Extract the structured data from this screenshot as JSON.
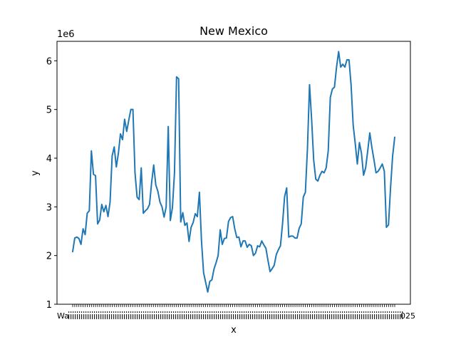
{
  "chart_data": {
    "type": "line",
    "title": "New Mexico",
    "xlabel": "x",
    "ylabel": "y",
    "y_scale_label": "1e6",
    "y_ticks": [
      1,
      2,
      3,
      4,
      5,
      6
    ],
    "ylim": [
      1.0,
      6.4
    ],
    "grid": false,
    "color": "#1f77b4",
    "x_tick_left_label": "Wa",
    "x_tick_right_label": "025",
    "series": [
      {
        "values": [
          2.08,
          2.36,
          2.38,
          2.35,
          2.23,
          2.55,
          2.43,
          2.87,
          2.92,
          4.15,
          3.67,
          3.64,
          2.65,
          2.73,
          3.05,
          2.9,
          3.03,
          2.8,
          3.1,
          4.05,
          4.23,
          3.82,
          4.1,
          4.5,
          4.38,
          4.8,
          4.55,
          4.78,
          5.0,
          5.0,
          3.7,
          3.2,
          3.15,
          3.8,
          2.87,
          2.92,
          2.96,
          3.05,
          3.5,
          3.86,
          3.45,
          3.32,
          3.1,
          3.0,
          2.79,
          3.0,
          4.65,
          2.72,
          2.98,
          3.7,
          5.67,
          5.63,
          2.69,
          2.88,
          2.62,
          2.67,
          2.29,
          2.58,
          2.68,
          2.86,
          2.8,
          3.3,
          2.3,
          1.65,
          1.45,
          1.25,
          1.47,
          1.5,
          1.72,
          1.85,
          2.0,
          2.53,
          2.23,
          2.35,
          2.36,
          2.7,
          2.78,
          2.8,
          2.55,
          2.37,
          2.38,
          2.18,
          2.3,
          2.3,
          2.17,
          2.23,
          2.2,
          2.0,
          2.05,
          2.2,
          2.18,
          2.3,
          2.22,
          2.15,
          1.9,
          1.67,
          1.73,
          1.8,
          2.02,
          2.12,
          2.2,
          2.65,
          3.21,
          3.39,
          2.38,
          2.4,
          2.4,
          2.36,
          2.36,
          2.56,
          2.65,
          3.2,
          3.3,
          4.2,
          5.51,
          4.8,
          3.96,
          3.57,
          3.53,
          3.65,
          3.73,
          3.7,
          3.8,
          4.15,
          5.25,
          5.42,
          5.46,
          5.87,
          6.19,
          5.87,
          5.93,
          5.87,
          6.02,
          6.02,
          5.5,
          4.68,
          4.3,
          3.88,
          4.32,
          4.1,
          3.65,
          3.8,
          4.15,
          4.52,
          4.22,
          3.97,
          3.7,
          3.73,
          3.8,
          3.88,
          3.73,
          2.58,
          2.63,
          3.4,
          4.05,
          4.43
        ]
      }
    ]
  }
}
